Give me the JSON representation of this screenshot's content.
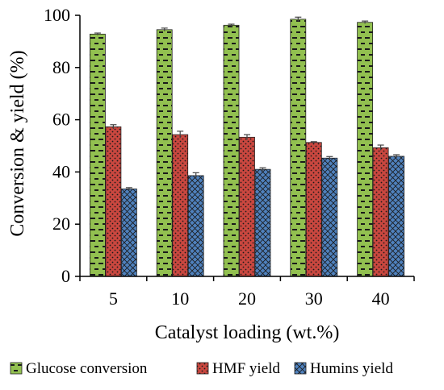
{
  "chart_data": {
    "type": "bar",
    "xlabel": "Catalyst loading (wt.%)",
    "ylabel": "Conversion & yield (%)",
    "ylim": [
      0,
      100
    ],
    "yticks": [
      0,
      20,
      40,
      60,
      80,
      100
    ],
    "categories": [
      "5",
      "10",
      "20",
      "30",
      "40"
    ],
    "series": [
      {
        "name": "Glucose conversion",
        "color": "#92c050",
        "pattern": "dashes",
        "values": [
          92.8,
          94.5,
          96.2,
          98.5,
          97.3
        ],
        "errors": [
          0.4,
          0.6,
          0.4,
          0.8,
          0.5
        ]
      },
      {
        "name": "HMF yield",
        "color": "#c9473f",
        "pattern": "dots",
        "values": [
          57.3,
          54.3,
          53.3,
          51.3,
          49.3
        ],
        "errors": [
          0.8,
          1.3,
          1.0,
          0.3,
          1.0
        ]
      },
      {
        "name": "Humins yield",
        "color": "#4f81bd",
        "pattern": "crosshatch",
        "values": [
          33.5,
          38.6,
          41.0,
          45.3,
          46.0
        ],
        "errors": [
          0.5,
          1.1,
          0.6,
          0.6,
          0.6
        ]
      }
    ],
    "grid": false,
    "legend": "bottom"
  }
}
